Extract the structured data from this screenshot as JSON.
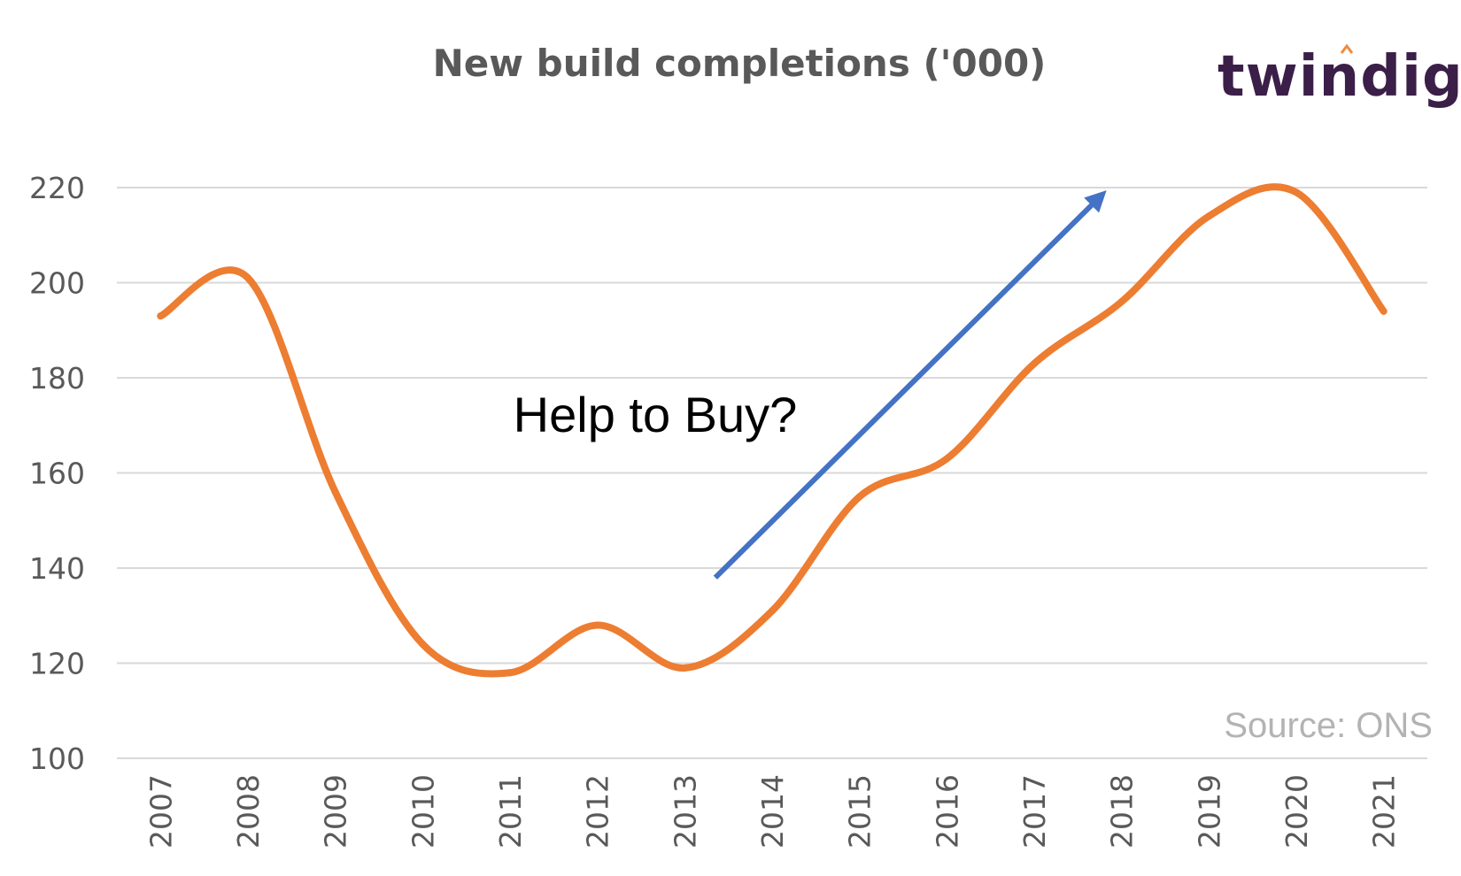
{
  "logo": {
    "text": "twindig",
    "accent_color": "#f08a3c"
  },
  "chart_data": {
    "type": "line",
    "title": "New build completions ('000)",
    "xlabel": "",
    "ylabel": "",
    "categories": [
      "2007",
      "2008",
      "2009",
      "2010",
      "2011",
      "2012",
      "2013",
      "2014",
      "2015",
      "2016",
      "2017",
      "2018",
      "2019",
      "2020",
      "2021"
    ],
    "series": [
      {
        "values": [
          193,
          201,
          156,
          124,
          118,
          128,
          119,
          131,
          155,
          163,
          183,
          196,
          214,
          219,
          194
        ],
        "color": "#ed7d31"
      }
    ],
    "ylim": [
      100,
      220
    ],
    "yticks": [
      100,
      120,
      140,
      160,
      180,
      200,
      220
    ],
    "grid": true,
    "smooth": true,
    "annotations": [
      {
        "text": "Help to Buy?",
        "arrow": {
          "from": [
            2013.35,
            138
          ],
          "to": [
            2017.75,
            218
          ]
        },
        "arrow_color": "#4472c4"
      }
    ],
    "source": "Source: ONS"
  }
}
